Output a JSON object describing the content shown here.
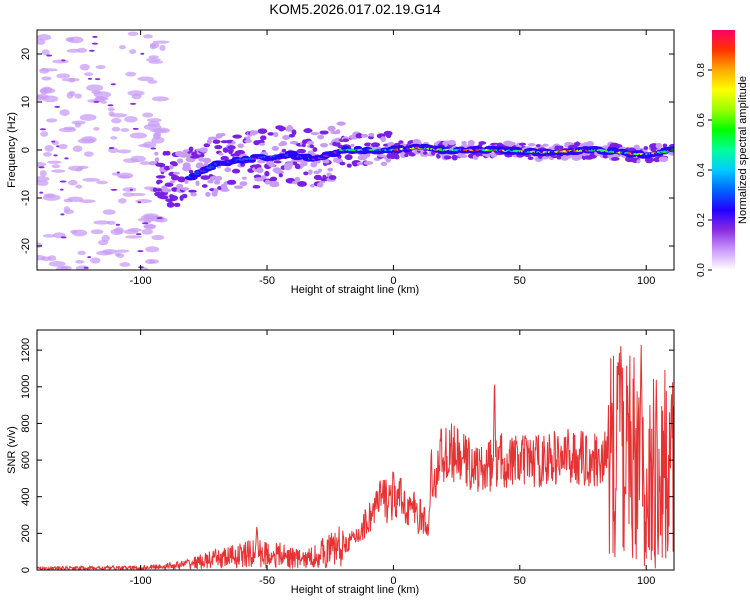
{
  "title": "KOM5.2026.017.02.19.G14",
  "chart_data": [
    {
      "type": "heatmap",
      "name": "spectrogram",
      "xlabel": "Height of straight line (km)",
      "ylabel": "Frequency (Hz)",
      "xlim": [
        -141,
        111
      ],
      "ylim": [
        -25,
        25
      ],
      "xticks": [
        -100,
        -50,
        0,
        50,
        100
      ],
      "yticks": [
        -20,
        -10,
        0,
        10,
        20
      ],
      "ridge": [
        {
          "x": -88,
          "f": -6.5
        },
        {
          "x": -80,
          "f": -5.5
        },
        {
          "x": -70,
          "f": -3
        },
        {
          "x": -60,
          "f": -2
        },
        {
          "x": -50,
          "f": -1.5
        },
        {
          "x": -40,
          "f": -1
        },
        {
          "x": -30,
          "f": -2
        },
        {
          "x": -20,
          "f": 0
        },
        {
          "x": -10,
          "f": 0
        },
        {
          "x": 0,
          "f": 0
        },
        {
          "x": 10,
          "f": 0.5
        },
        {
          "x": 20,
          "f": 0
        },
        {
          "x": 40,
          "f": 0
        },
        {
          "x": 60,
          "f": -0.5
        },
        {
          "x": 80,
          "f": 0
        },
        {
          "x": 100,
          "f": -1
        },
        {
          "x": 111,
          "f": 0
        }
      ],
      "colorbar": {
        "label": "Normalized spectral amplitude",
        "ticks": [
          "0.0",
          "0.2",
          "0.4",
          "0.6",
          "0.8"
        ],
        "range": [
          0,
          0.96
        ],
        "colors": [
          "#ffffff",
          "#cc99ff",
          "#8a2be2",
          "#2200ff",
          "#0066ff",
          "#00ccff",
          "#00ff99",
          "#00ff00",
          "#99ff00",
          "#ffff00",
          "#ffaa00",
          "#ff3300",
          "#ff0066"
        ]
      }
    },
    {
      "type": "line",
      "name": "snr",
      "xlabel": "Height of straight line (km)",
      "ylabel": "SNR (v/v)",
      "xlim": [
        -141,
        111
      ],
      "ylim": [
        0,
        1310
      ],
      "xticks": [
        -100,
        -50,
        0,
        50,
        100
      ],
      "yticks": [
        0,
        200,
        400,
        600,
        800,
        1000,
        1200
      ],
      "color": "#e53333",
      "envelope": [
        {
          "x": -141,
          "y": 10
        },
        {
          "x": -100,
          "y": 12
        },
        {
          "x": -85,
          "y": 25
        },
        {
          "x": -70,
          "y": 60
        },
        {
          "x": -55,
          "y": 90
        },
        {
          "x": -45,
          "y": 80
        },
        {
          "x": -35,
          "y": 55
        },
        {
          "x": -25,
          "y": 110
        },
        {
          "x": -15,
          "y": 170
        },
        {
          "x": -10,
          "y": 280
        },
        {
          "x": -5,
          "y": 380
        },
        {
          "x": 0,
          "y": 400
        },
        {
          "x": 5,
          "y": 360
        },
        {
          "x": 10,
          "y": 300
        },
        {
          "x": 14,
          "y": 230
        },
        {
          "x": 18,
          "y": 620
        },
        {
          "x": 23,
          "y": 640
        },
        {
          "x": 28,
          "y": 600
        },
        {
          "x": 35,
          "y": 540
        },
        {
          "x": 42,
          "y": 600
        },
        {
          "x": 50,
          "y": 590
        },
        {
          "x": 60,
          "y": 600
        },
        {
          "x": 70,
          "y": 620
        },
        {
          "x": 80,
          "y": 600
        },
        {
          "x": 90,
          "y": 650
        },
        {
          "x": 100,
          "y": 500
        },
        {
          "x": 111,
          "y": 550
        }
      ],
      "peaks": [
        {
          "x": -54,
          "y": 250
        },
        {
          "x": 15,
          "y": 700
        },
        {
          "x": 40,
          "y": 1100
        },
        {
          "x": 90,
          "y": 1300
        },
        {
          "x": 98,
          "y": 1280
        },
        {
          "x": 104,
          "y": 1060
        },
        {
          "x": 110,
          "y": 1000
        }
      ]
    }
  ]
}
